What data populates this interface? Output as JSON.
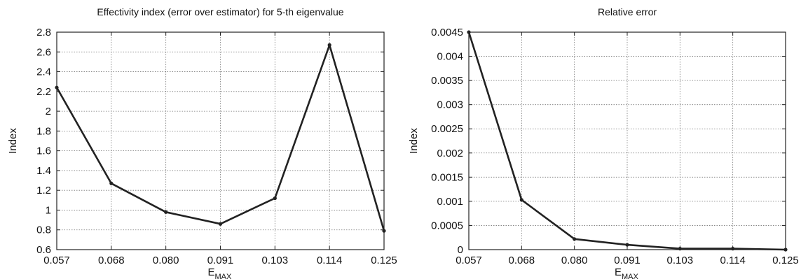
{
  "chart_data": [
    {
      "type": "line",
      "title": "Effectivity index (error over estimator) for 5-th eigenvalue",
      "xlabel": "E",
      "xlabel_sub": "MAX",
      "ylabel": "Index",
      "categories": [
        "0.057",
        "0.068",
        "0.080",
        "0.091",
        "0.103",
        "0.114",
        "0.125"
      ],
      "values": [
        2.24,
        1.27,
        0.98,
        0.86,
        1.12,
        2.67,
        0.79
      ],
      "ylim": [
        0.6,
        2.8
      ],
      "yticks": [
        "0.6",
        "0.8",
        "1",
        "1.2",
        "1.4",
        "1.6",
        "1.8",
        "2",
        "2.2",
        "2.4",
        "2.6",
        "2.8"
      ],
      "grid": true,
      "legend": "none"
    },
    {
      "type": "line",
      "title": "Relative error",
      "xlabel": "E",
      "xlabel_sub": "MAX",
      "ylabel": "Index",
      "categories": [
        "0.057",
        "0.068",
        "0.080",
        "0.091",
        "0.103",
        "0.114",
        "0.125"
      ],
      "values": [
        0.0045,
        0.00103,
        0.00022,
        0.0001,
        2e-05,
        2e-05,
        0.0
      ],
      "ylim": [
        0,
        0.0045
      ],
      "yticks": [
        "0",
        "0.0005",
        "0.001",
        "0.0015",
        "0.002",
        "0.0025",
        "0.003",
        "0.0035",
        "0.004",
        "0.0045"
      ],
      "grid": true,
      "legend": "none"
    }
  ]
}
